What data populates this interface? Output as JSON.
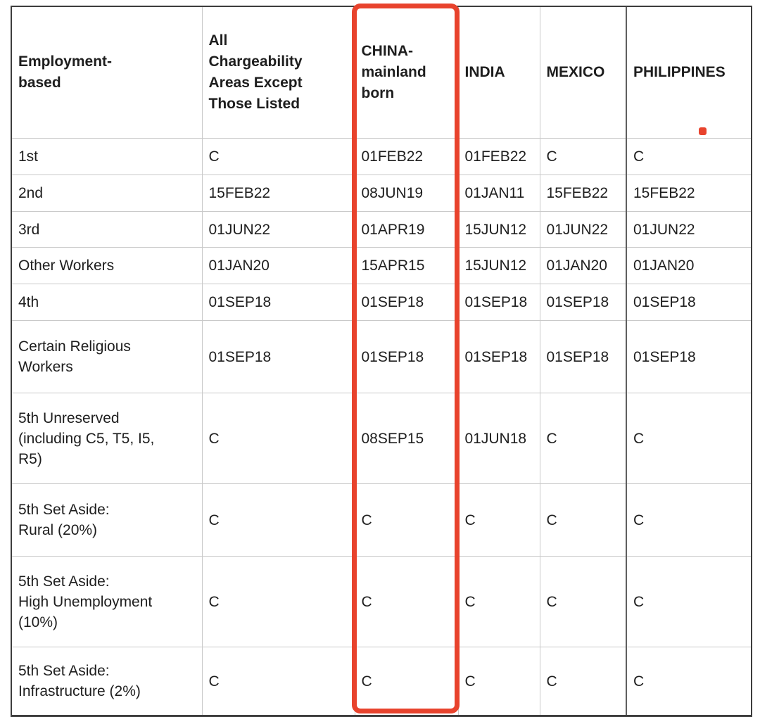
{
  "highlight": {
    "color": "#e8432d",
    "highlighted_column": "CHINA-mainland born"
  },
  "table": {
    "columns": [
      {
        "label": "Employment-\nbased"
      },
      {
        "label": "All\nChargeability\nAreas Except\nThose Listed"
      },
      {
        "label": "CHINA-\nmainland\nborn"
      },
      {
        "label": "INDIA"
      },
      {
        "label": "MEXICO"
      },
      {
        "label": "PHILIPPINES"
      }
    ],
    "rows": [
      {
        "label": "1st",
        "values": [
          "C",
          "01FEB22",
          "01FEB22",
          "C",
          "C"
        ]
      },
      {
        "label": "2nd",
        "values": [
          "15FEB22",
          "08JUN19",
          "01JAN11",
          "15FEB22",
          "15FEB22"
        ]
      },
      {
        "label": "3rd",
        "values": [
          "01JUN22",
          "01APR19",
          "15JUN12",
          "01JUN22",
          "01JUN22"
        ]
      },
      {
        "label": "Other Workers",
        "values": [
          "01JAN20",
          "15APR15",
          "15JUN12",
          "01JAN20",
          "01JAN20"
        ]
      },
      {
        "label": "4th",
        "values": [
          "01SEP18",
          "01SEP18",
          "01SEP18",
          "01SEP18",
          "01SEP18"
        ]
      },
      {
        "label": "Certain Religious\nWorkers",
        "values": [
          "01SEP18",
          "01SEP18",
          "01SEP18",
          "01SEP18",
          "01SEP18"
        ]
      },
      {
        "label": "5th Unreserved\n(including C5, T5, I5,\nR5)",
        "values": [
          "C",
          "08SEP15",
          "01JUN18",
          "C",
          "C"
        ]
      },
      {
        "label": "5th Set Aside:\nRural (20%)",
        "values": [
          "C",
          "C",
          "C",
          "C",
          "C"
        ]
      },
      {
        "label": "5th Set Aside:\nHigh Unemployment\n(10%)",
        "values": [
          "C",
          "C",
          "C",
          "C",
          "C"
        ]
      },
      {
        "label": "5th Set Aside:\nInfrastructure (2%)",
        "values": [
          "C",
          "C",
          "C",
          "C",
          "C"
        ]
      }
    ]
  }
}
